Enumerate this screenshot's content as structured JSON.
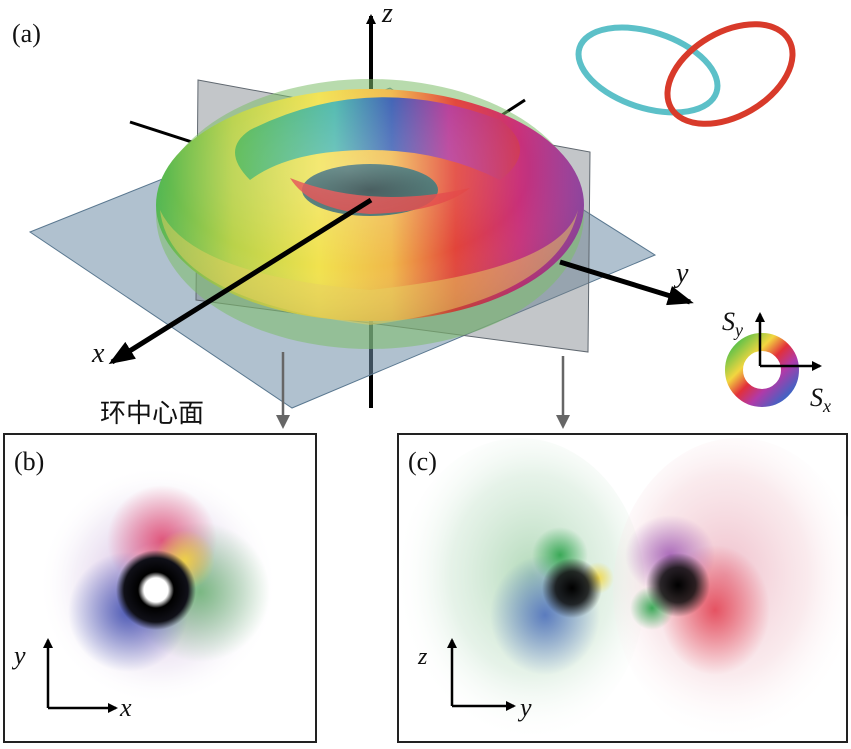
{
  "panel_a": {
    "label": "(a)",
    "axes": {
      "x": "x",
      "y": "y",
      "z": "z"
    },
    "plane_caption": "环中心面"
  },
  "panel_b": {
    "label": "(b)",
    "axes": {
      "horizontal": "x",
      "vertical": "y"
    }
  },
  "panel_c": {
    "label": "(c)",
    "axes": {
      "horizontal": "y",
      "vertical": "z"
    }
  },
  "color_legend": {
    "horizontal_base": "S",
    "horizontal_sub": "x",
    "vertical_base": "S",
    "vertical_sub": "y"
  },
  "colors": {
    "hopf_ring_left": "#5cc0c8",
    "hopf_ring_right": "#d83a2a",
    "plane": "#6f8ea8",
    "frame": "#222222"
  }
}
